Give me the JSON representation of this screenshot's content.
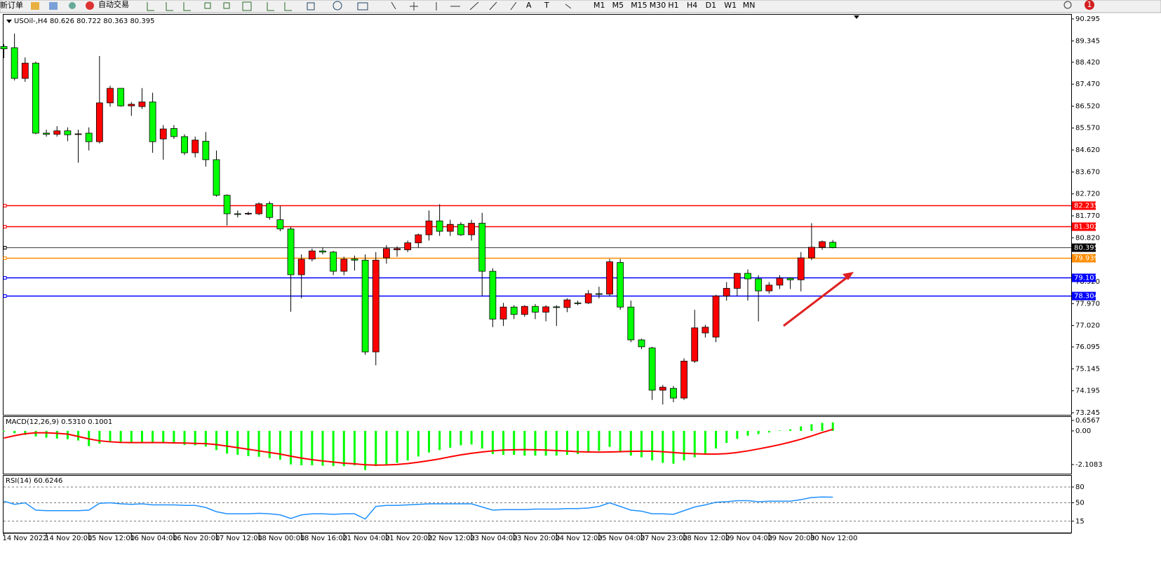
{
  "toolbar": {
    "items": [
      "新订单",
      "自动交易"
    ],
    "timeframes": [
      "M1",
      "M5",
      "M15",
      "M30",
      "H1",
      "H4",
      "D1",
      "W1",
      "MN"
    ],
    "badge": "1"
  },
  "chart_data": [
    {
      "type": "candlestick",
      "title": "USOil-,H4 80.626 80.722 80.363 80.395",
      "categories": [
        "14 Nov 2022",
        null,
        null,
        null,
        "14 Nov 20:00",
        null,
        null,
        null,
        "15 Nov 12:00",
        null,
        null,
        null,
        "16 Nov 04:00",
        null,
        null,
        null,
        "16 Nov 20:00",
        null,
        null,
        null,
        "17 Nov 12:00",
        null,
        null,
        null,
        "18 Nov 00:00",
        null,
        null,
        null,
        "18 Nov 16:00",
        null,
        null,
        null,
        "21 Nov 04:00",
        null,
        null,
        null,
        "21 Nov 20:00",
        null,
        null,
        null,
        "22 Nov 12:00",
        null,
        null,
        null,
        "23 Nov 04:00",
        null,
        null,
        null,
        "23 Nov 20:00",
        null,
        null,
        null,
        "24 Nov 12:00",
        null,
        null,
        null,
        "25 Nov 04:00",
        null,
        null,
        null,
        "27 Nov 23:00",
        null,
        null,
        null,
        "28 Nov 12:00",
        null,
        null,
        null,
        "29 Nov 04:00",
        null,
        null,
        null,
        "29 Nov 20:00",
        null,
        null,
        null,
        "30 Nov 12:00",
        null,
        null
      ],
      "open": [
        89.1,
        89.05,
        87.72,
        88.38,
        85.35,
        85.3,
        85.45,
        85.3,
        85.35,
        84.98,
        86.66,
        87.29,
        86.53,
        86.5,
        86.7,
        85.1,
        85.55,
        85.2,
        84.5,
        85.0,
        84.2,
        82.66,
        81.86,
        81.85,
        81.86,
        82.3,
        81.6,
        81.2,
        79.22,
        79.9,
        80.25,
        80.2,
        79.37,
        79.9,
        79.85,
        75.88,
        79.95,
        80.3,
        80.3,
        80.6,
        80.95,
        81.55,
        81.1,
        81.4,
        80.95,
        81.45,
        79.37,
        77.3,
        77.82,
        77.5,
        77.85,
        77.6,
        77.83,
        77.8,
        78.0,
        78.0,
        78.4,
        78.38,
        79.75,
        77.82,
        76.4,
        76.05,
        74.22,
        74.3,
        73.88,
        75.48,
        76.7,
        76.52,
        78.3,
        78.63,
        79.28,
        79.04,
        78.52,
        78.77,
        79.07,
        79.0,
        79.95,
        80.41,
        80.626
      ],
      "high": [
        89.2,
        89.66,
        88.63,
        88.45,
        85.5,
        85.65,
        85.6,
        85.5,
        85.6,
        88.69,
        87.4,
        87.3,
        86.7,
        87.3,
        87.1,
        85.7,
        85.7,
        85.3,
        85.2,
        85.4,
        84.6,
        82.7,
        82.0,
        81.95,
        82.35,
        82.4,
        82.2,
        81.3,
        80.1,
        80.35,
        80.4,
        80.25,
        80.0,
        80.05,
        80.1,
        80.2,
        80.5,
        80.45,
        80.7,
        81.0,
        82.0,
        82.27,
        81.6,
        81.5,
        81.6,
        81.9,
        79.5,
        78.0,
        77.9,
        77.9,
        77.95,
        77.9,
        77.9,
        78.2,
        78.1,
        78.55,
        78.7,
        79.9,
        79.9,
        78.1,
        76.45,
        76.1,
        74.45,
        74.4,
        75.6,
        77.7,
        77.05,
        78.35,
        78.9,
        79.3,
        79.45,
        79.2,
        78.9,
        79.2,
        79.1,
        80.2,
        81.45,
        80.7,
        80.722
      ],
      "low": [
        88.6,
        87.63,
        87.57,
        85.3,
        85.2,
        85.2,
        85.0,
        84.07,
        84.6,
        84.9,
        86.5,
        86.5,
        86.1,
        86.4,
        84.5,
        84.2,
        85.1,
        84.4,
        84.3,
        83.9,
        82.6,
        81.35,
        81.7,
        81.8,
        81.8,
        81.6,
        81.1,
        77.62,
        78.2,
        79.8,
        80.1,
        79.2,
        79.2,
        79.4,
        75.75,
        75.3,
        79.7,
        80.0,
        80.2,
        80.4,
        80.7,
        80.9,
        80.9,
        80.9,
        80.7,
        78.3,
        76.95,
        77.0,
        77.3,
        77.4,
        77.3,
        77.2,
        77.0,
        77.6,
        77.9,
        77.95,
        78.2,
        78.3,
        77.7,
        76.3,
        76.0,
        73.8,
        73.6,
        73.7,
        73.8,
        75.4,
        76.5,
        76.3,
        78.1,
        78.3,
        78.1,
        77.2,
        78.4,
        78.6,
        78.6,
        78.5,
        79.85,
        80.3,
        80.363
      ],
      "close": [
        89.0,
        87.72,
        88.38,
        85.35,
        85.3,
        85.45,
        85.28,
        85.32,
        84.98,
        86.66,
        87.29,
        86.53,
        86.6,
        86.7,
        84.98,
        85.53,
        85.2,
        84.5,
        85.05,
        84.2,
        82.66,
        81.86,
        81.85,
        81.88,
        82.29,
        81.7,
        81.2,
        79.22,
        79.89,
        80.25,
        80.2,
        79.37,
        79.89,
        79.85,
        75.88,
        79.85,
        80.35,
        80.35,
        80.6,
        80.95,
        81.55,
        81.1,
        81.4,
        80.95,
        81.45,
        79.37,
        77.3,
        77.82,
        77.5,
        77.85,
        77.6,
        77.83,
        77.8,
        78.13,
        78.0,
        78.4,
        78.38,
        79.78,
        77.82,
        76.4,
        76.1,
        74.22,
        74.35,
        73.88,
        75.48,
        76.92,
        76.95,
        78.3,
        78.63,
        79.28,
        79.04,
        78.52,
        78.77,
        79.07,
        79.0,
        79.95,
        80.41,
        80.65,
        80.395
      ],
      "up_color": "#ff0000",
      "down_color": "#00ff00",
      "ylim": [
        73.245,
        90.295
      ],
      "yticks": [
        90.295,
        89.345,
        {
          "value": 88.42,
          "label": "88.420"
        },
        {
          "value": 87.47,
          "label": "87.470"
        },
        {
          "value": 86.52,
          "label": "86.520"
        },
        {
          "value": 85.57,
          "label": "85.570"
        },
        {
          "value": 84.62,
          "label": "84.620"
        },
        {
          "value": 83.67,
          "label": "83.670"
        },
        {
          "value": 82.72,
          "label": "82.720"
        },
        {
          "value": 81.77,
          "label": "81.770"
        },
        {
          "value": 80.82,
          "label": "80.820"
        },
        {
          "value": 78.92,
          "label": "78.920"
        },
        {
          "value": 77.97,
          "label": "77.970"
        },
        {
          "value": 77.02,
          "label": "77.020"
        },
        76.095,
        75.145,
        74.195,
        73.245
      ],
      "levels": [
        {
          "value": 82.235,
          "color": "#ff0000"
        },
        {
          "value": 81.302,
          "color": "#ff0000"
        },
        {
          "value": 80.395,
          "color": "#000000"
        },
        {
          "value": 79.939,
          "color": "#ff8c00"
        },
        {
          "value": 79.107,
          "color": "#0000ff"
        },
        {
          "value": 78.304,
          "color": "#0000ff"
        }
      ]
    },
    {
      "type": "macd",
      "title": "MACD(12,26,9) 0.5310 0.1001",
      "ylim": [
        -2.59,
        0.83
      ],
      "yticks": [
        0.6567,
        {
          "value": 0,
          "label": "0.00"
        },
        -2.1083
      ],
      "series": [
        {
          "style": "bar",
          "color": "#00ff00",
          "values": [
            -0.05,
            -0.15,
            -0.25,
            -0.35,
            -0.42,
            -0.48,
            -0.52,
            -0.6,
            -0.95,
            -0.8,
            -0.72,
            -0.75,
            -0.72,
            -0.7,
            -0.75,
            -0.78,
            -0.8,
            -0.88,
            -0.9,
            -0.98,
            -1.2,
            -1.42,
            -1.5,
            -1.58,
            -1.62,
            -1.7,
            -1.8,
            -2.1,
            -2.15,
            -2.15,
            -2.18,
            -2.2,
            -2.2,
            -2.15,
            -2.45,
            -2.2,
            -2.1,
            -2.0,
            -1.85,
            -1.6,
            -1.35,
            -1.2,
            -1.05,
            -0.9,
            -0.85,
            -1.1,
            -1.45,
            -1.5,
            -1.5,
            -1.55,
            -1.55,
            -1.55,
            -1.55,
            -1.5,
            -1.45,
            -1.35,
            -1.25,
            -1.0,
            -1.3,
            -1.55,
            -1.65,
            -1.85,
            -2.0,
            -2.05,
            -1.85,
            -1.65,
            -1.45,
            -1.1,
            -0.75,
            -0.5,
            -0.3,
            -0.2,
            -0.1,
            0.03,
            0.1,
            0.28,
            0.42,
            0.5,
            0.531
          ]
        },
        {
          "style": "line",
          "color": "#ff0000",
          "values": [
            -0.45,
            -0.3,
            -0.18,
            -0.12,
            -0.12,
            -0.15,
            -0.2,
            -0.35,
            -0.5,
            -0.62,
            -0.68,
            -0.72,
            -0.73,
            -0.73,
            -0.73,
            -0.73,
            -0.75,
            -0.76,
            -0.78,
            -0.8,
            -0.86,
            -0.95,
            -1.05,
            -1.15,
            -1.25,
            -1.35,
            -1.45,
            -1.58,
            -1.7,
            -1.8,
            -1.88,
            -1.95,
            -2.02,
            -2.06,
            -2.12,
            -2.14,
            -2.13,
            -2.1,
            -2.04,
            -1.96,
            -1.86,
            -1.75,
            -1.62,
            -1.5,
            -1.4,
            -1.32,
            -1.25,
            -1.2,
            -1.18,
            -1.17,
            -1.18,
            -1.2,
            -1.23,
            -1.26,
            -1.3,
            -1.32,
            -1.33,
            -1.32,
            -1.3,
            -1.28,
            -1.27,
            -1.27,
            -1.3,
            -1.35,
            -1.4,
            -1.43,
            -1.45,
            -1.45,
            -1.42,
            -1.35,
            -1.25,
            -1.13,
            -1.0,
            -0.86,
            -0.7,
            -0.52,
            -0.32,
            -0.1,
            0.1001
          ]
        }
      ]
    },
    {
      "type": "rsi",
      "title": "RSI(14) 60.6246",
      "ylim": [
        0,
        100
      ],
      "yticks": [
        80,
        50,
        15
      ],
      "grid": true,
      "series": [
        {
          "style": "line",
          "color": "#1e90ff",
          "values": [
            53,
            47,
            50,
            36,
            35,
            35,
            35,
            35,
            36,
            49,
            50,
            48,
            47,
            48,
            46,
            46,
            46,
            45,
            45,
            41,
            33,
            29,
            29,
            29,
            30,
            29,
            27,
            20,
            27,
            29,
            29,
            28,
            29,
            29,
            19,
            43,
            45,
            45,
            46,
            47,
            48,
            48,
            48,
            48,
            48,
            42,
            36,
            37,
            37,
            37,
            38,
            38,
            38,
            39,
            39,
            40,
            43,
            50,
            43,
            36,
            34,
            29,
            29,
            28,
            35,
            42,
            46,
            51,
            52,
            54,
            54,
            52,
            53,
            53,
            53,
            56,
            60,
            61,
            60.6246
          ]
        }
      ]
    }
  ]
}
